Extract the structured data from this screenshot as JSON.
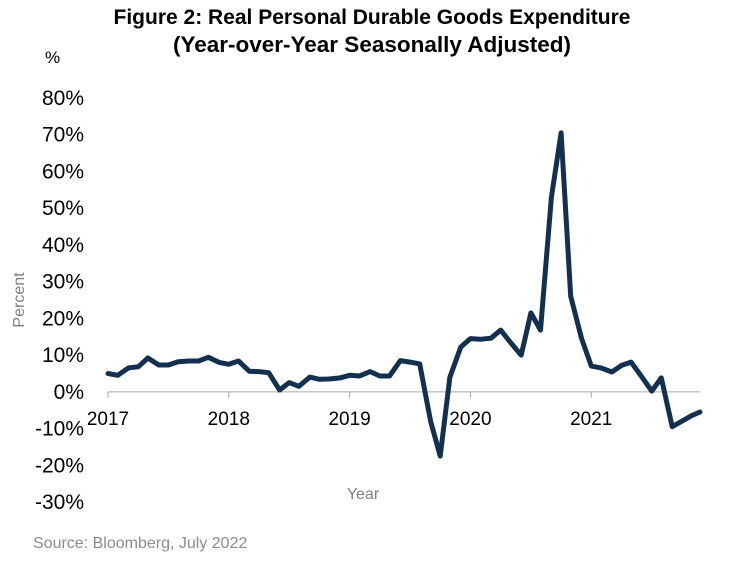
{
  "title_line1": "Figure 2: Real Personal Durable Goods Expenditure",
  "title_line2": "(Year-over-Year Seasonally Adjusted)",
  "unit_label": "%",
  "source": "Source: Bloomberg,  July 2022",
  "colors": {
    "line": "#13304e",
    "axis_line": "#a6a6a6",
    "axis_title": "#7f7f7f"
  },
  "chart_data": {
    "type": "line",
    "xlabel": "Year",
    "ylabel": "Percent",
    "ylim": [
      -30,
      80
    ],
    "yticks": [
      80,
      70,
      60,
      50,
      40,
      30,
      20,
      10,
      0,
      -10,
      -20,
      -30
    ],
    "ytick_labels": [
      "80%",
      "70%",
      "60%",
      "50%",
      "40%",
      "30%",
      "20%",
      "10%",
      "0%",
      "-10%",
      "-20%",
      "-30%"
    ],
    "xlim": [
      2017,
      2021.9
    ],
    "xticks": [
      2017,
      2018,
      2019,
      2020,
      2021
    ],
    "xtick_labels": [
      "2017",
      "2018",
      "2019",
      "2020",
      "2021"
    ],
    "grid": false,
    "legend": "none",
    "series": [
      {
        "x": [
          2017.0,
          2017.08,
          2017.17,
          2017.25,
          2017.33,
          2017.42,
          2017.5,
          2017.58,
          2017.67,
          2017.75,
          2017.83,
          2017.92,
          2018.0,
          2018.08,
          2018.17,
          2018.25,
          2018.33,
          2018.42,
          2018.5,
          2018.58,
          2018.67,
          2018.75,
          2018.83,
          2018.92,
          2019.0,
          2019.08,
          2019.17,
          2019.25,
          2019.33,
          2019.42,
          2019.5,
          2019.58,
          2019.67,
          2019.75,
          2019.83,
          2019.92,
          2020.0,
          2020.08,
          2020.17,
          2020.25,
          2020.33,
          2020.42,
          2020.5,
          2020.58,
          2020.67,
          2020.75,
          2020.83,
          2020.92,
          2021.0,
          2021.08,
          2021.17,
          2021.25,
          2021.33,
          2021.42,
          2021.5,
          2021.58,
          2021.67,
          2021.75,
          2021.83,
          2021.9
        ],
        "values": [
          5.0,
          4.5,
          6.5,
          6.8,
          9.2,
          7.3,
          7.3,
          8.2,
          8.4,
          8.4,
          9.4,
          8.0,
          7.5,
          8.4,
          5.6,
          5.5,
          5.2,
          0.5,
          2.5,
          1.5,
          4.0,
          3.4,
          3.5,
          3.8,
          4.5,
          4.3,
          5.5,
          4.3,
          4.3,
          8.5,
          8.1,
          7.6,
          -8.0,
          -17.5,
          4.0,
          12.2,
          14.5,
          14.3,
          14.6,
          16.8,
          13.5,
          10.0,
          21.5,
          16.8,
          53.0,
          70.5,
          26.0,
          14.5,
          7.0,
          6.5,
          5.4,
          7.2,
          8.1,
          4.0,
          0.2,
          3.8,
          -9.5,
          -8.0,
          -6.5,
          -5.5
        ]
      }
    ]
  }
}
